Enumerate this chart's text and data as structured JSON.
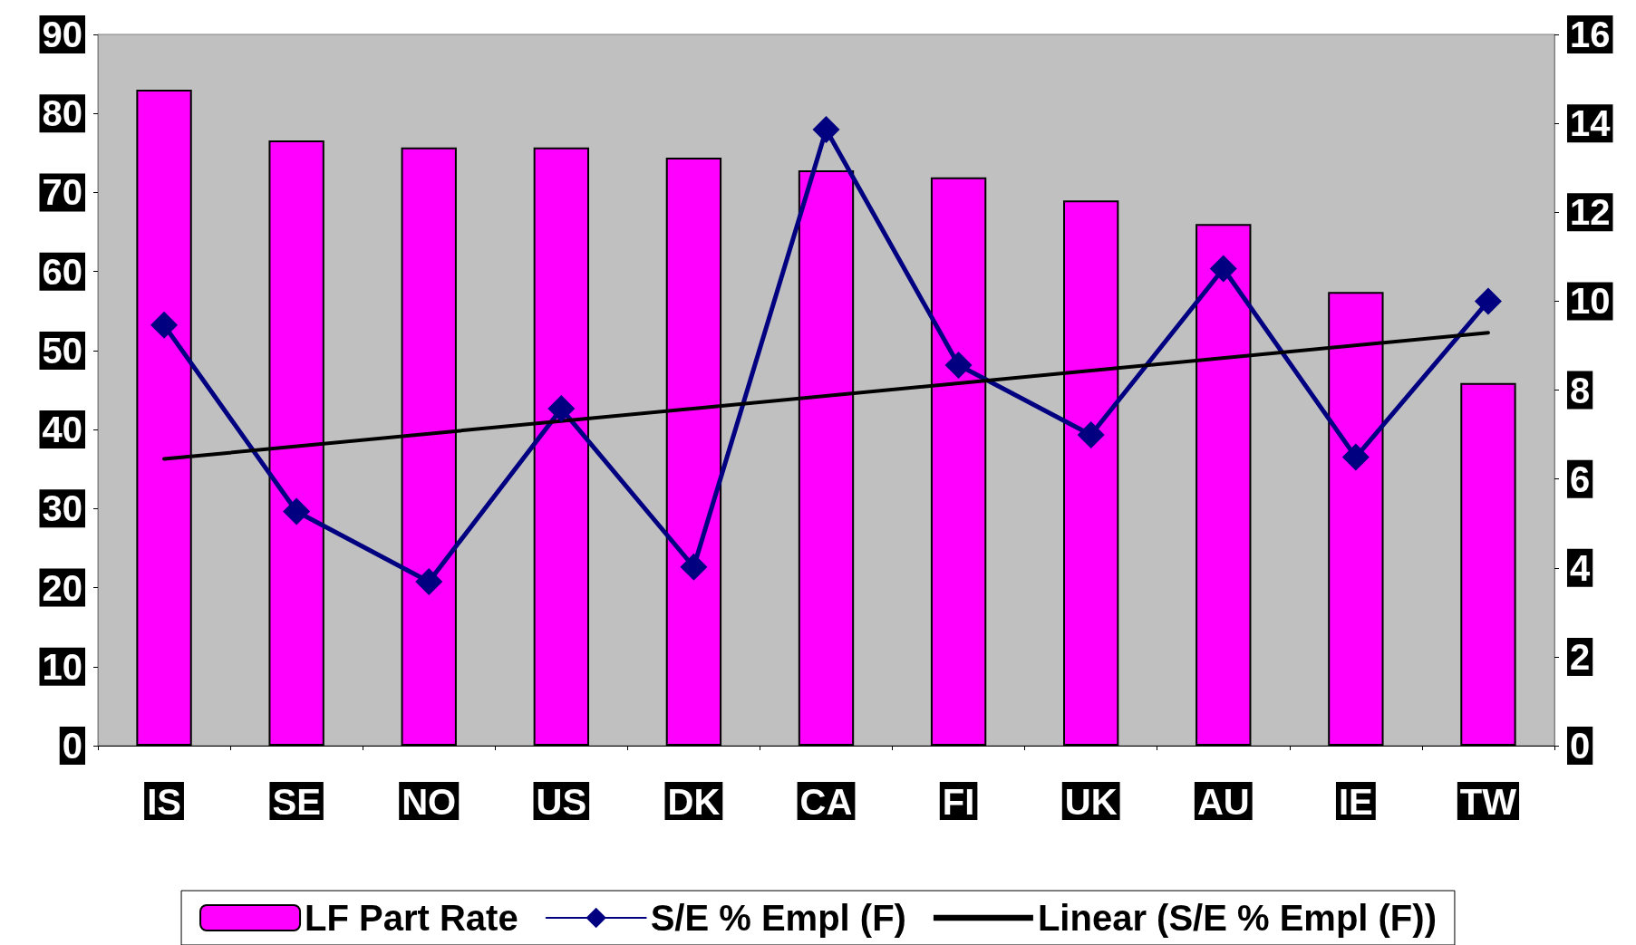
{
  "chart_data": {
    "type": "bar",
    "categories": [
      "IS",
      "SE",
      "NO",
      "US",
      "DK",
      "CA",
      "FI",
      "UK",
      "AU",
      "IE",
      "TW"
    ],
    "series": [
      {
        "name": "LF Part Rate",
        "color": "#ff00ff",
        "values": [
          83.0,
          76.6,
          75.7,
          75.7,
          74.4,
          72.8,
          71.9,
          69.0,
          66.0,
          57.4,
          45.9
        ]
      },
      {
        "name": "S/E % Empl (F)",
        "type": "line",
        "axis": "y2",
        "color": "#000080",
        "marker": "diamond",
        "values": [
          9.46,
          5.27,
          3.69,
          7.58,
          4.02,
          13.86,
          8.56,
          6.99,
          10.73,
          6.49,
          10.0
        ]
      },
      {
        "name": "Linear (S/E % Empl (F))",
        "type": "line",
        "axis": "y2",
        "color": "#000000",
        "marker": "none",
        "x": [
          "IS",
          "TW"
        ],
        "values": [
          6.45,
          9.29
        ]
      }
    ],
    "ylim": [
      0,
      90
    ],
    "yticks": [
      0,
      10,
      20,
      30,
      40,
      50,
      60,
      70,
      80,
      90
    ],
    "y2lim": [
      0,
      16
    ],
    "y2ticks": [
      0,
      2,
      4,
      6,
      8,
      10,
      12,
      14,
      16
    ],
    "grid": false,
    "legend": "bottom"
  }
}
